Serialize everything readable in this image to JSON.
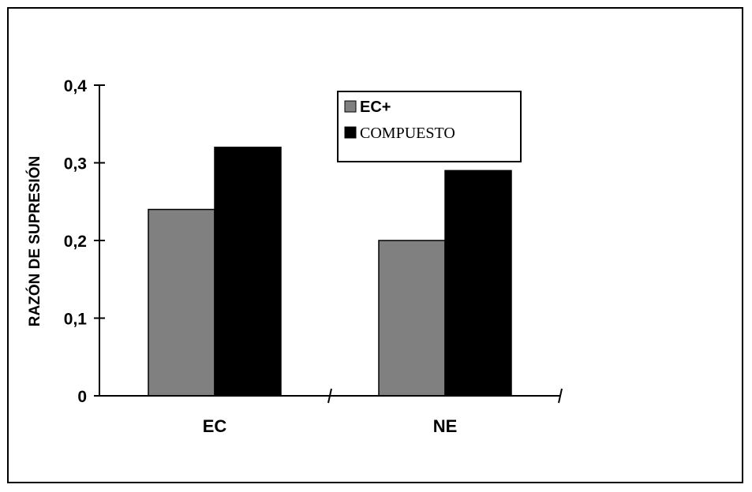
{
  "chart_data": {
    "type": "bar",
    "categories": [
      "EC",
      "NE"
    ],
    "series": [
      {
        "name": "EC+",
        "values": [
          0.24,
          0.2
        ],
        "color": "#808080"
      },
      {
        "name": "COMPUESTO",
        "values": [
          0.32,
          0.29
        ],
        "color": "#000000"
      }
    ],
    "title": "",
    "xlabel": "",
    "ylabel": "RAZÓN DE SUPRESIÓN",
    "ylim": [
      0,
      0.4
    ],
    "yticks": [
      0,
      0.1,
      0.2,
      0.3,
      0.4
    ],
    "ytick_labels": [
      "0",
      "0,1",
      "0,2",
      "0,3",
      "0,4"
    ],
    "grid": false,
    "legend": "top-right"
  }
}
